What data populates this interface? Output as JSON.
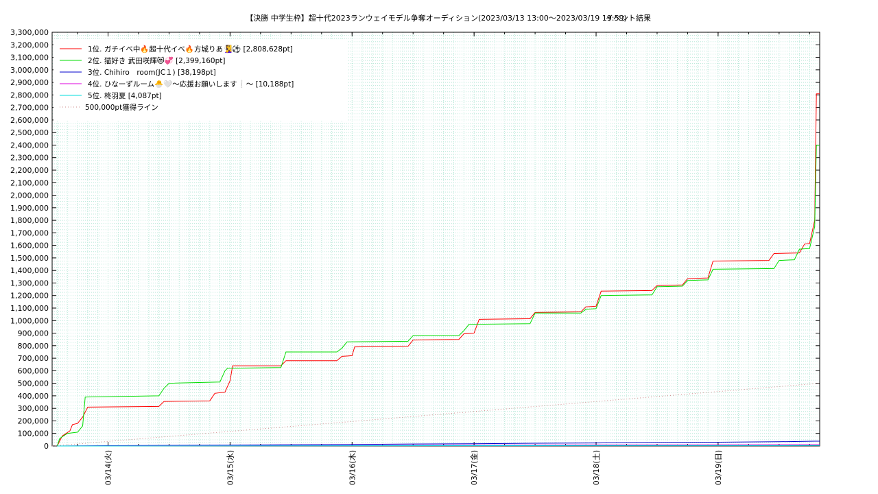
{
  "chart_data": {
    "type": "line",
    "title": "【決勝 中学生枠】超十代2023ランウェイモデル争奪オーディション(2023/03/13 13:00〜2023/03/19 19:59)",
    "subtitle": "イベント結果",
    "x_range": [
      "2023/03/13 13:00",
      "2023/03/19 19:59"
    ],
    "ylim": [
      0,
      3300000
    ],
    "y_ticks": [
      0,
      100000,
      200000,
      300000,
      400000,
      500000,
      600000,
      700000,
      800000,
      900000,
      1000000,
      1100000,
      1200000,
      1300000,
      1400000,
      1500000,
      1600000,
      1700000,
      1800000,
      1900000,
      2000000,
      2100000,
      2200000,
      2300000,
      2400000,
      2500000,
      2600000,
      2700000,
      2800000,
      2900000,
      3000000,
      3100000,
      3200000,
      3300000
    ],
    "y_tick_labels": [
      "0",
      "100,000",
      "200,000",
      "300,000",
      "400,000",
      "500,000",
      "600,000",
      "700,000",
      "800,000",
      "900,000",
      "1,000,000",
      "1,100,000",
      "1,200,000",
      "1,300,000",
      "1,400,000",
      "1,500,000",
      "1,600,000",
      "1,700,000",
      "1,800,000",
      "1,900,000",
      "2,000,000",
      "2,100,000",
      "2,200,000",
      "2,300,000",
      "2,400,000",
      "2,500,000",
      "2,600,000",
      "2,700,000",
      "2,800,000",
      "2,900,000",
      "3,000,000",
      "3,100,000",
      "3,200,000",
      "3,300,000"
    ],
    "x_ticks": [
      "2023/03/14 00:00",
      "2023/03/15 00:00",
      "2023/03/16 00:00",
      "2023/03/17 00:00",
      "2023/03/18 00:00",
      "2023/03/19 00:00"
    ],
    "x_tick_labels": [
      "03/14(火)",
      "03/15(水)",
      "03/16(木)",
      "03/17(金)",
      "03/18(土)",
      "03/19(日)"
    ],
    "grid": true,
    "legend_position": "top-left",
    "series": [
      {
        "name": "1位. ガチイベ中🔥超十代イベ🔥方城りあ🧏‍♀️⚽ [2,808,628pt]",
        "color": "#ff0000",
        "points": [
          [
            "2023/03/13 14:00",
            0
          ],
          [
            "2023/03/13 15:00",
            80000
          ],
          [
            "2023/03/13 16:30",
            120000
          ],
          [
            "2023/03/13 17:00",
            170000
          ],
          [
            "2023/03/13 18:00",
            180000
          ],
          [
            "2023/03/13 19:00",
            230000
          ],
          [
            "2023/03/13 20:00",
            310000
          ],
          [
            "2023/03/14 10:00",
            315000
          ],
          [
            "2023/03/14 11:00",
            355000
          ],
          [
            "2023/03/14 20:00",
            360000
          ],
          [
            "2023/03/14 21:00",
            420000
          ],
          [
            "2023/03/14 23:00",
            430000
          ],
          [
            "2023/03/15 00:00",
            520000
          ],
          [
            "2023/03/15 00:30",
            640000
          ],
          [
            "2023/03/15 10:00",
            640000
          ],
          [
            "2023/03/15 11:00",
            680000
          ],
          [
            "2023/03/15 21:00",
            680000
          ],
          [
            "2023/03/15 22:00",
            715000
          ],
          [
            "2023/03/16 00:00",
            720000
          ],
          [
            "2023/03/16 00:30",
            790000
          ],
          [
            "2023/03/16 11:00",
            795000
          ],
          [
            "2023/03/16 12:00",
            845000
          ],
          [
            "2023/03/16 21:00",
            850000
          ],
          [
            "2023/03/16 22:00",
            895000
          ],
          [
            "2023/03/17 00:00",
            900000
          ],
          [
            "2023/03/17 01:00",
            1010000
          ],
          [
            "2023/03/17 11:00",
            1015000
          ],
          [
            "2023/03/17 12:00",
            1065000
          ],
          [
            "2023/03/17 21:00",
            1070000
          ],
          [
            "2023/03/17 22:00",
            1110000
          ],
          [
            "2023/03/18 00:00",
            1115000
          ],
          [
            "2023/03/18 01:00",
            1235000
          ],
          [
            "2023/03/18 11:00",
            1240000
          ],
          [
            "2023/03/18 12:00",
            1280000
          ],
          [
            "2023/03/18 17:00",
            1285000
          ],
          [
            "2023/03/18 18:00",
            1335000
          ],
          [
            "2023/03/18 22:00",
            1340000
          ],
          [
            "2023/03/18 23:00",
            1475000
          ],
          [
            "2023/03/19 10:00",
            1480000
          ],
          [
            "2023/03/19 11:00",
            1535000
          ],
          [
            "2023/03/19 16:00",
            1540000
          ],
          [
            "2023/03/19 17:00",
            1610000
          ],
          [
            "2023/03/19 18:00",
            1615000
          ],
          [
            "2023/03/19 19:00",
            1800000
          ],
          [
            "2023/03/19 19:20",
            2808628
          ],
          [
            "2023/03/19 19:59",
            2808628
          ]
        ]
      },
      {
        "name": "2位. 猫好き 武田咲輝😻💞 [2,399,160pt]",
        "color": "#00dd00",
        "points": [
          [
            "2023/03/13 14:00",
            0
          ],
          [
            "2023/03/13 14:30",
            60000
          ],
          [
            "2023/03/13 16:00",
            100000
          ],
          [
            "2023/03/13 18:00",
            110000
          ],
          [
            "2023/03/13 19:00",
            160000
          ],
          [
            "2023/03/13 19:30",
            390000
          ],
          [
            "2023/03/14 10:00",
            400000
          ],
          [
            "2023/03/14 11:00",
            460000
          ],
          [
            "2023/03/14 12:00",
            500000
          ],
          [
            "2023/03/14 22:00",
            510000
          ],
          [
            "2023/03/14 23:00",
            600000
          ],
          [
            "2023/03/14 23:30",
            620000
          ],
          [
            "2023/03/15 10:00",
            625000
          ],
          [
            "2023/03/15 11:00",
            750000
          ],
          [
            "2023/03/15 21:00",
            750000
          ],
          [
            "2023/03/15 22:00",
            780000
          ],
          [
            "2023/03/15 23:00",
            830000
          ],
          [
            "2023/03/16 11:00",
            835000
          ],
          [
            "2023/03/16 12:00",
            880000
          ],
          [
            "2023/03/16 21:00",
            880000
          ],
          [
            "2023/03/16 22:00",
            920000
          ],
          [
            "2023/03/16 23:00",
            970000
          ],
          [
            "2023/03/17 11:00",
            975000
          ],
          [
            "2023/03/17 12:00",
            1060000
          ],
          [
            "2023/03/17 21:00",
            1060000
          ],
          [
            "2023/03/17 22:00",
            1090000
          ],
          [
            "2023/03/18 00:00",
            1095000
          ],
          [
            "2023/03/18 01:00",
            1200000
          ],
          [
            "2023/03/18 11:00",
            1205000
          ],
          [
            "2023/03/18 12:00",
            1270000
          ],
          [
            "2023/03/18 17:00",
            1275000
          ],
          [
            "2023/03/18 18:00",
            1320000
          ],
          [
            "2023/03/18 22:00",
            1325000
          ],
          [
            "2023/03/18 23:00",
            1410000
          ],
          [
            "2023/03/19 11:00",
            1415000
          ],
          [
            "2023/03/19 12:00",
            1480000
          ],
          [
            "2023/03/19 15:00",
            1485000
          ],
          [
            "2023/03/19 16:00",
            1570000
          ],
          [
            "2023/03/19 18:00",
            1575000
          ],
          [
            "2023/03/19 19:00",
            1750000
          ],
          [
            "2023/03/19 19:20",
            2399160
          ],
          [
            "2023/03/19 19:59",
            2399160
          ]
        ]
      },
      {
        "name": "3位. Chihiro　room(JC１) [38,198pt]",
        "color": "#0000cc",
        "points": [
          [
            "2023/03/13 14:00",
            0
          ],
          [
            "2023/03/14 00:00",
            3000
          ],
          [
            "2023/03/15 00:00",
            6000
          ],
          [
            "2023/03/15 10:00",
            10000
          ],
          [
            "2023/03/16 00:00",
            12000
          ],
          [
            "2023/03/16 12:00",
            16000
          ],
          [
            "2023/03/17 00:00",
            18000
          ],
          [
            "2023/03/17 12:00",
            22000
          ],
          [
            "2023/03/18 00:00",
            24000
          ],
          [
            "2023/03/18 12:00",
            28000
          ],
          [
            "2023/03/19 00:00",
            30000
          ],
          [
            "2023/03/19 12:00",
            34000
          ],
          [
            "2023/03/19 19:00",
            38198
          ],
          [
            "2023/03/19 19:59",
            38198
          ]
        ]
      },
      {
        "name": "4位. ひなーずルーム🐣🤍〜応援お願いします❕〜 [10,188pt]",
        "color": "#dd00dd",
        "points": [
          [
            "2023/03/13 14:00",
            0
          ],
          [
            "2023/03/15 00:00",
            3000
          ],
          [
            "2023/03/17 00:00",
            6000
          ],
          [
            "2023/03/18 00:00",
            8000
          ],
          [
            "2023/03/19 19:00",
            10188
          ],
          [
            "2023/03/19 19:59",
            10188
          ]
        ]
      },
      {
        "name": "5位. 柊羽夏 [4,087pt]",
        "color": "#00dddd",
        "points": [
          [
            "2023/03/13 14:00",
            0
          ],
          [
            "2023/03/16 00:00",
            2000
          ],
          [
            "2023/03/19 19:59",
            4087
          ]
        ]
      },
      {
        "name": "500,000pt獲得ライン",
        "color": "#cc8888",
        "style": "dotted",
        "points": [
          [
            "2023/03/13 13:00",
            0
          ],
          [
            "2023/03/19 19:59",
            500000
          ]
        ]
      }
    ]
  }
}
